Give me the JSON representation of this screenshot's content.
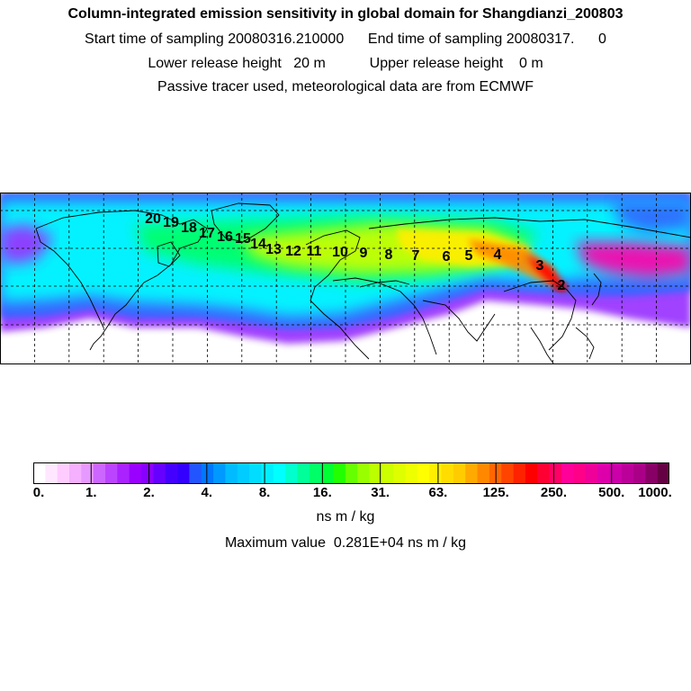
{
  "header": {
    "title": "Column-integrated emission sensitivity in global domain for Shangdianzi_200803",
    "line2": "Start time of sampling 20080316.210000      End time of sampling 20080317.      0",
    "line3": "Lower release height   20 m           Upper release height    0 m",
    "line4": "Passive tracer used, meteorological data are from ECMWF"
  },
  "map": {
    "trajectory_labels": [
      "2",
      "3",
      "4",
      "5",
      "6",
      "7",
      "8",
      "9",
      "10",
      "11",
      "12",
      "13",
      "14",
      "15",
      "16",
      "17",
      "18",
      "19",
      "20"
    ],
    "colors": {
      "white": "#ffffff",
      "violet": "#9933ff",
      "blue": "#3366ff",
      "cyan": "#00ffff",
      "green": "#00ff66",
      "yellowgreen": "#ccff00",
      "yellow": "#ffee00",
      "orange": "#ff8800",
      "red": "#ff0000",
      "magenta": "#ff00aa"
    }
  },
  "colorbar": {
    "tick_labels": [
      "0.",
      "1.",
      "2.",
      "4.",
      "8.",
      "16.",
      "31.",
      "63.",
      "125.",
      "250.",
      "500.",
      "1000."
    ],
    "colors": [
      "#ffffff",
      "#ffe8ff",
      "#ffccff",
      "#f5b0ff",
      "#e699ff",
      "#cc66ff",
      "#bb44ff",
      "#aa22ff",
      "#9900ff",
      "#8800ff",
      "#6600ff",
      "#4400ff",
      "#3300ff",
      "#2255ff",
      "#0077ff",
      "#0099ff",
      "#00bbff",
      "#00ccff",
      "#00ddff",
      "#00eeff",
      "#00ffff",
      "#00ffcc",
      "#00ff99",
      "#00ff66",
      "#00ff33",
      "#22ff00",
      "#66ff00",
      "#99ff00",
      "#bbff00",
      "#ccff00",
      "#ddff00",
      "#eeff00",
      "#ffff00",
      "#ffee00",
      "#ffdd00",
      "#ffcc00",
      "#ffaa00",
      "#ff8800",
      "#ff6600",
      "#ff4400",
      "#ff2200",
      "#ff0000",
      "#ff0033",
      "#ff0066",
      "#ff0099",
      "#ff0088",
      "#ee0099",
      "#dd00aa",
      "#cc00aa",
      "#bb0099",
      "#aa0088",
      "#880066",
      "#660044"
    ]
  },
  "unit": "ns m / kg",
  "maximum": "Maximum value  0.281E+04 ns m / kg"
}
